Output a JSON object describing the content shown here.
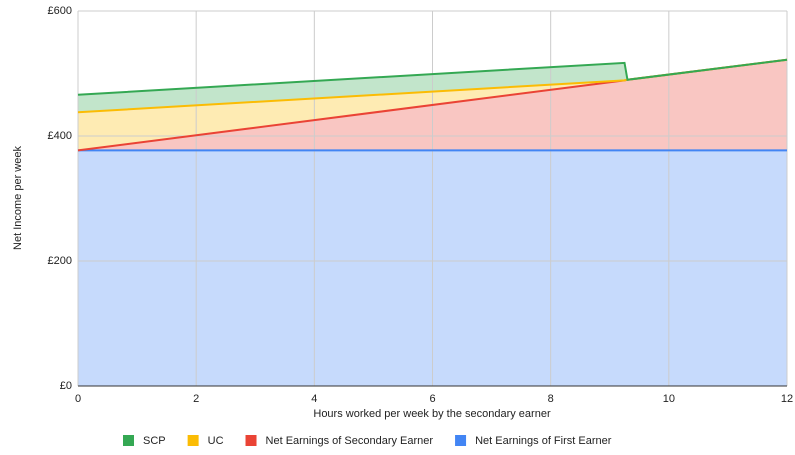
{
  "chart_data": {
    "type": "stacked-area",
    "x_label": "Hours worked per week by the secondary earner",
    "y_label": "Net Income per week",
    "x": [
      0,
      9.25,
      9.3,
      12
    ],
    "series": [
      {
        "name": "SCP",
        "color": "#34a853",
        "values": [
          28,
          28,
          0,
          0
        ]
      },
      {
        "name": "UC",
        "color": "#fbbc04",
        "values": [
          61,
          0,
          0,
          0
        ]
      },
      {
        "name": "Net Earnings of Secondary Earner",
        "color": "#ea4335",
        "values": [
          0,
          112,
          113,
          145
        ]
      },
      {
        "name": "Net Earnings of First Earner",
        "color": "#4285f4",
        "values": [
          377,
          377,
          377,
          377
        ]
      }
    ],
    "xlim": [
      0,
      12
    ],
    "xticks": [
      0,
      2,
      4,
      6,
      8,
      10,
      12
    ],
    "ylim": [
      0,
      600
    ],
    "yticks": [
      {
        "value": 0,
        "label": "£0"
      },
      {
        "value": 200,
        "label": "£200"
      },
      {
        "value": 400,
        "label": "£400"
      },
      {
        "value": 600,
        "label": "£600"
      }
    ],
    "grid": true,
    "legend": "bottom"
  }
}
